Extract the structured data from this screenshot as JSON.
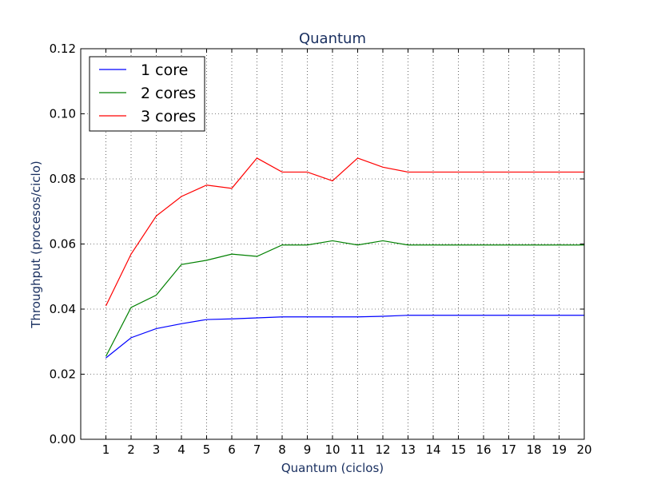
{
  "chart_data": {
    "type": "line",
    "title": "Quantum",
    "xlabel": "Quantum (ciclos)",
    "ylabel": "Throughput (procesos/ciclo)",
    "xlim": [
      0,
      20
    ],
    "ylim": [
      0,
      0.12
    ],
    "x_ticks": [
      1,
      2,
      3,
      4,
      5,
      6,
      7,
      8,
      9,
      10,
      11,
      12,
      13,
      14,
      15,
      16,
      17,
      18,
      19,
      20
    ],
    "y_ticks": [
      0,
      0.02,
      0.04,
      0.06,
      0.08,
      0.1,
      0.12
    ],
    "y_tick_labels": [
      "0.00",
      "0.02",
      "0.04",
      "0.06",
      "0.08",
      "0.10",
      "0.12"
    ],
    "grid": true,
    "legend_position": "top-left",
    "x": [
      1,
      2,
      3,
      4,
      5,
      6,
      7,
      8,
      9,
      10,
      11,
      12,
      13,
      14,
      15,
      16,
      17,
      18,
      19,
      20
    ],
    "series": [
      {
        "name": "1 core",
        "color": "#0000ff",
        "values": [
          0.025,
          0.0312,
          0.034,
          0.0355,
          0.0368,
          0.037,
          0.0373,
          0.0376,
          0.0376,
          0.0376,
          0.0376,
          0.0378,
          0.0381,
          0.0381,
          0.0381,
          0.0381,
          0.0381,
          0.0381,
          0.0381,
          0.0381
        ]
      },
      {
        "name": "2 cores",
        "color": "#008000",
        "values": [
          0.0255,
          0.0405,
          0.0443,
          0.0537,
          0.055,
          0.0569,
          0.0562,
          0.0597,
          0.0597,
          0.061,
          0.0597,
          0.061,
          0.0597,
          0.0597,
          0.0597,
          0.0597,
          0.0597,
          0.0597,
          0.0597,
          0.0597
        ]
      },
      {
        "name": "3 cores",
        "color": "#ff0000",
        "values": [
          0.041,
          0.0569,
          0.0686,
          0.0746,
          0.0781,
          0.0771,
          0.0864,
          0.0821,
          0.0821,
          0.0794,
          0.0864,
          0.0836,
          0.0821,
          0.0821,
          0.0821,
          0.0821,
          0.0821,
          0.0821,
          0.0821,
          0.0821
        ]
      }
    ]
  }
}
